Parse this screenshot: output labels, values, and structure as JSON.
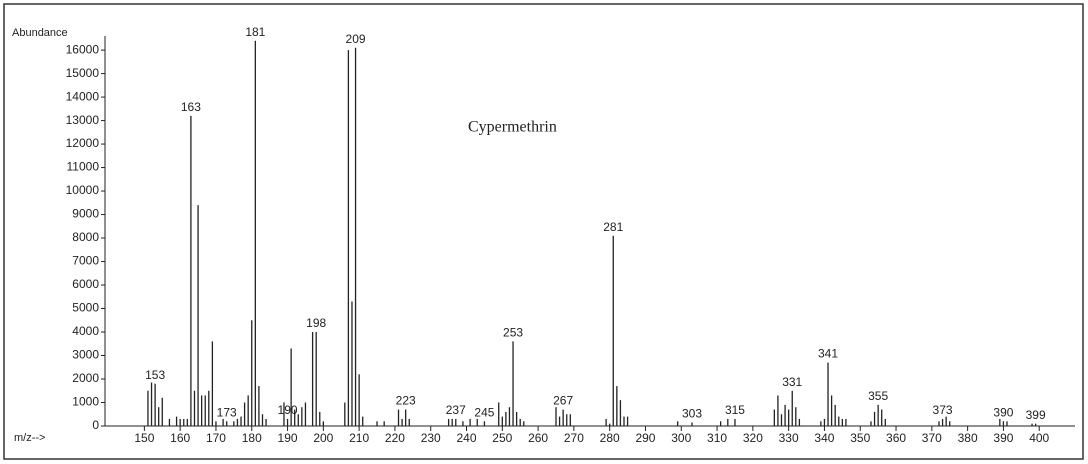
{
  "chart_data": {
    "type": "stick",
    "title": "Cypermethrin",
    "y_label": "Abundance",
    "x_label": "m/z-->",
    "color": "#222222",
    "x": [
      151,
      152,
      153,
      154,
      155,
      157,
      159,
      160,
      161,
      162,
      163,
      164,
      165,
      166,
      167,
      168,
      169,
      170,
      172,
      173,
      175,
      176,
      177,
      178,
      179,
      180,
      181,
      182,
      183,
      184,
      189,
      190,
      191,
      192,
      193,
      194,
      195,
      197,
      198,
      199,
      200,
      206,
      207,
      208,
      209,
      210,
      211,
      215,
      217,
      221,
      222,
      223,
      224,
      235,
      236,
      237,
      239,
      241,
      243,
      245,
      249,
      250,
      251,
      252,
      253,
      254,
      255,
      256,
      265,
      266,
      267,
      268,
      269,
      279,
      280,
      281,
      282,
      283,
      284,
      285,
      299,
      303,
      311,
      313,
      315,
      326,
      327,
      328,
      329,
      330,
      331,
      332,
      333,
      339,
      340,
      341,
      342,
      343,
      344,
      345,
      346,
      353,
      354,
      355,
      356,
      357,
      372,
      373,
      374,
      375,
      389,
      390,
      391,
      398,
      399
    ],
    "values": [
      1500,
      1850,
      1800,
      800,
      1200,
      300,
      400,
      300,
      300,
      300,
      13200,
      1500,
      9400,
      1300,
      1300,
      1500,
      3600,
      200,
      300,
      200,
      200,
      300,
      400,
      1000,
      1300,
      4500,
      16400,
      1700,
      500,
      300,
      1000,
      300,
      3300,
      700,
      500,
      800,
      1000,
      4000,
      4000,
      600,
      200,
      1000,
      16000,
      5300,
      16100,
      2200,
      400,
      200,
      200,
      700,
      300,
      700,
      300,
      300,
      300,
      300,
      200,
      300,
      300,
      200,
      1000,
      400,
      600,
      800,
      3600,
      600,
      300,
      200,
      800,
      400,
      700,
      500,
      500,
      300,
      100,
      8100,
      1700,
      1100,
      400,
      400,
      200,
      150,
      200,
      300,
      300,
      700,
      1300,
      500,
      900,
      700,
      1500,
      800,
      300,
      200,
      300,
      2700,
      1300,
      900,
      400,
      300,
      300,
      200,
      600,
      900,
      700,
      300,
      200,
      300,
      400,
      200,
      300,
      200,
      200,
      100,
      100
    ],
    "peak_labels": [
      153,
      163,
      173,
      181,
      190,
      198,
      209,
      223,
      237,
      245,
      253,
      267,
      281,
      303,
      315,
      331,
      341,
      355,
      373,
      390,
      399
    ],
    "xlim": [
      139,
      410
    ],
    "xticks": [
      150,
      160,
      170,
      180,
      190,
      200,
      210,
      220,
      230,
      240,
      250,
      260,
      270,
      280,
      290,
      300,
      310,
      320,
      330,
      340,
      350,
      360,
      370,
      380,
      390,
      400
    ],
    "ylim": [
      0,
      16600
    ],
    "yticks": [
      0,
      1000,
      2000,
      3000,
      4000,
      5000,
      6000,
      7000,
      8000,
      9000,
      10000,
      11000,
      12000,
      13000,
      14000,
      15000,
      16000
    ]
  }
}
